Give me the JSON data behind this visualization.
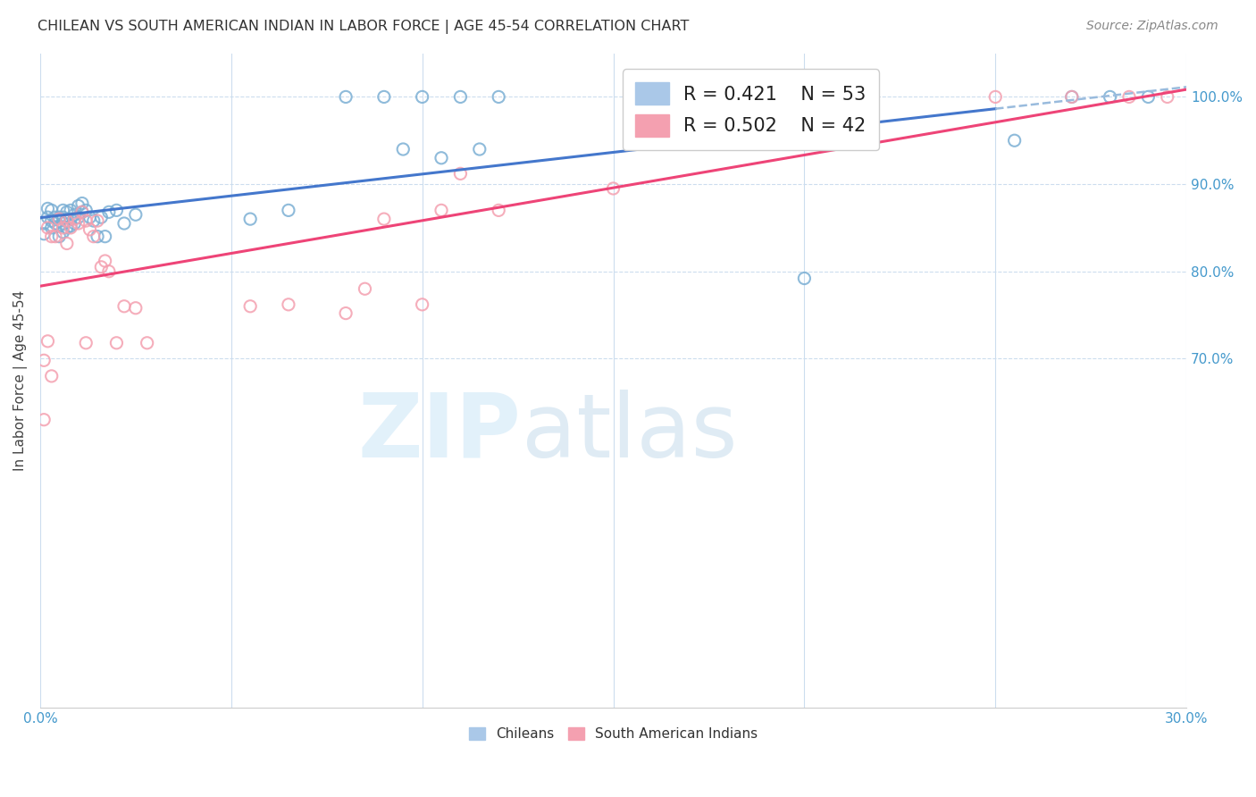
{
  "title": "CHILEAN VS SOUTH AMERICAN INDIAN IN LABOR FORCE | AGE 45-54 CORRELATION CHART",
  "source": "Source: ZipAtlas.com",
  "ylabel": "In Labor Force | Age 45-54",
  "xlim": [
    0.0,
    0.3
  ],
  "ylim": [
    0.3,
    1.05
  ],
  "chilean_color": "#7bafd4",
  "chilean_edge_color": "#5588bb",
  "south_american_color": "#f4a0b0",
  "south_american_edge_color": "#e06080",
  "chilean_line_color": "#4477cc",
  "south_american_line_color": "#ee4477",
  "chilean_dash_color": "#99bbdd",
  "chilean_R": 0.421,
  "chilean_N": 53,
  "south_american_R": 0.502,
  "south_american_N": 42,
  "chilean_x": [
    0.001,
    0.001,
    0.002,
    0.002,
    0.003,
    0.003,
    0.003,
    0.004,
    0.004,
    0.005,
    0.005,
    0.005,
    0.006,
    0.006,
    0.006,
    0.006,
    0.007,
    0.007,
    0.007,
    0.008,
    0.008,
    0.008,
    0.009,
    0.009,
    0.01,
    0.01,
    0.011,
    0.011,
    0.012,
    0.013,
    0.014,
    0.015,
    0.016,
    0.017,
    0.018,
    0.02,
    0.022,
    0.025,
    0.055,
    0.065,
    0.08,
    0.09,
    0.095,
    0.1,
    0.105,
    0.11,
    0.115,
    0.12,
    0.2,
    0.255,
    0.27,
    0.28,
    0.29
  ],
  "chilean_y": [
    0.843,
    0.855,
    0.862,
    0.872,
    0.85,
    0.858,
    0.87,
    0.855,
    0.862,
    0.84,
    0.852,
    0.862,
    0.845,
    0.855,
    0.862,
    0.87,
    0.85,
    0.858,
    0.868,
    0.852,
    0.86,
    0.87,
    0.855,
    0.865,
    0.862,
    0.875,
    0.868,
    0.878,
    0.87,
    0.862,
    0.858,
    0.84,
    0.862,
    0.84,
    0.868,
    0.87,
    0.855,
    0.865,
    0.86,
    0.87,
    1.0,
    1.0,
    0.94,
    1.0,
    0.93,
    1.0,
    0.94,
    1.0,
    0.792,
    0.95,
    1.0,
    1.0,
    1.0
  ],
  "south_american_x": [
    0.001,
    0.001,
    0.002,
    0.003,
    0.003,
    0.004,
    0.005,
    0.006,
    0.007,
    0.007,
    0.008,
    0.009,
    0.01,
    0.011,
    0.012,
    0.013,
    0.014,
    0.015,
    0.016,
    0.017,
    0.018,
    0.02,
    0.022,
    0.025,
    0.028,
    0.055,
    0.065,
    0.08,
    0.085,
    0.09,
    0.1,
    0.105,
    0.11,
    0.12,
    0.15,
    0.2,
    0.25,
    0.27,
    0.285,
    0.295,
    0.002,
    0.012
  ],
  "south_american_y": [
    0.63,
    0.698,
    0.85,
    0.68,
    0.84,
    0.84,
    0.86,
    0.85,
    0.832,
    0.858,
    0.85,
    0.86,
    0.855,
    0.868,
    0.858,
    0.848,
    0.84,
    0.858,
    0.805,
    0.812,
    0.8,
    0.718,
    0.76,
    0.758,
    0.718,
    0.76,
    0.762,
    0.752,
    0.78,
    0.86,
    0.762,
    0.87,
    0.912,
    0.87,
    0.895,
    1.0,
    1.0,
    1.0,
    1.0,
    1.0,
    0.72,
    0.718
  ]
}
